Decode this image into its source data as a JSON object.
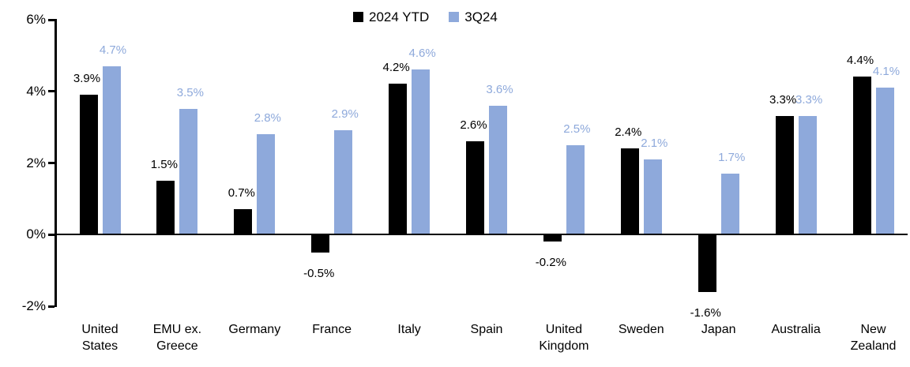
{
  "chart_data": {
    "type": "bar",
    "title": "",
    "xlabel": "",
    "ylabel": "",
    "categories": [
      "United States",
      "EMU ex. Greece",
      "Germany",
      "France",
      "Italy",
      "Spain",
      "United Kingdom",
      "Sweden",
      "Japan",
      "Australia",
      "New Zealand"
    ],
    "series": [
      {
        "name": "2024 YTD",
        "color": "#000000",
        "values": [
          3.9,
          1.5,
          0.7,
          -0.5,
          4.2,
          2.6,
          -0.2,
          2.4,
          -1.6,
          3.3,
          4.4
        ]
      },
      {
        "name": "3Q24",
        "color": "#8EA9DB",
        "values": [
          4.7,
          3.5,
          2.8,
          2.9,
          4.6,
          3.6,
          2.5,
          2.1,
          1.7,
          3.3,
          4.1
        ]
      }
    ],
    "data_labels": {
      "2024 YTD": [
        "3.9%",
        "1.5%",
        "0.7%",
        "-0.5%",
        "4.2%",
        "2.6%",
        "-0.2%",
        "2.4%",
        "-1.6%",
        "3.3%",
        "4.4%"
      ],
      "3Q24": [
        "4.7%",
        "3.5%",
        "2.8%",
        "2.9%",
        "4.6%",
        "3.6%",
        "2.5%",
        "2.1%",
        "1.7%",
        "3.3%",
        "4.1%"
      ]
    },
    "y_axis": {
      "min": -2,
      "max": 6,
      "tick_step": 2,
      "tick_labels": [
        "6%",
        "4%",
        "2%",
        "0%",
        "-2%"
      ]
    },
    "legend_position": "top",
    "grid": false,
    "background_color": "#FFFFFF",
    "axis_color": "#000000"
  }
}
